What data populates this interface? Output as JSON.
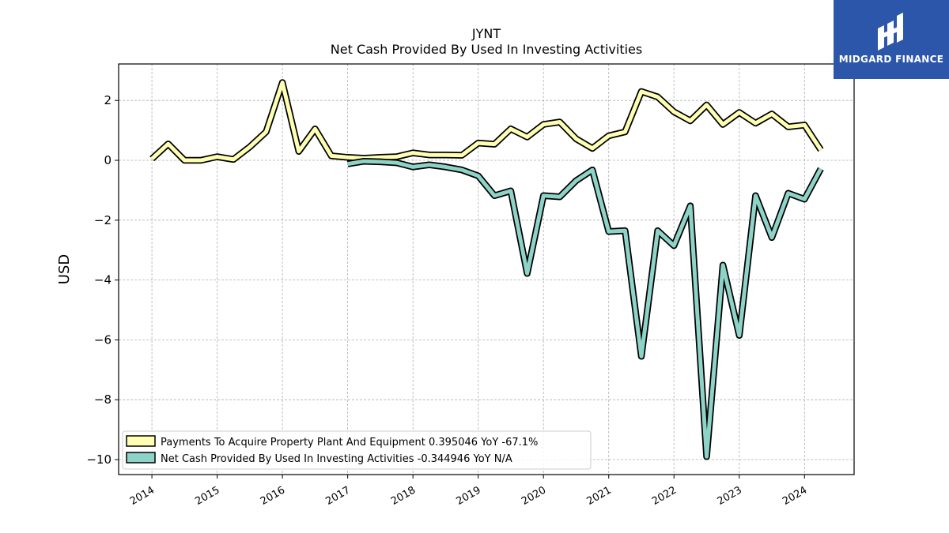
{
  "brand": {
    "name": "MIDGARD FINANCE",
    "color": "#2b56aa"
  },
  "chart_data": {
    "type": "line",
    "title": "JYNT",
    "subtitle": "Net Cash Provided By Used In Investing Activities",
    "xlabel": "",
    "ylabel": "USD",
    "xlim": [
      2013.49,
      2024.76
    ],
    "ylim": [
      -10.5,
      3.22
    ],
    "grid": true,
    "legend_position": "lower-left",
    "x_ticks": [
      2014,
      2015,
      2016,
      2017,
      2018,
      2019,
      2020,
      2021,
      2022,
      2023,
      2024
    ],
    "x_tick_labels": [
      "2014",
      "2015",
      "2016",
      "2017",
      "2018",
      "2019",
      "2020",
      "2021",
      "2022",
      "2023",
      "2024"
    ],
    "y_ticks": [
      2,
      0,
      -2,
      -4,
      -6,
      -8,
      -10
    ],
    "y_tick_labels": [
      "2",
      "0",
      "−2",
      "−4",
      "−6",
      "−8",
      "−10"
    ],
    "series": [
      {
        "name": "Payments To Acquire Property Plant And Equipment",
        "legend_label": "Payments To Acquire Property Plant And Equipment  0.395046 YoY -67.1%",
        "color": "#ffffb3",
        "x": [
          2014.0,
          2014.25,
          2014.5,
          2014.75,
          2015.0,
          2015.25,
          2015.5,
          2015.75,
          2016.0,
          2016.25,
          2016.5,
          2016.75,
          2017.0,
          2017.25,
          2017.5,
          2017.75,
          2018.0,
          2018.25,
          2018.5,
          2018.75,
          2019.0,
          2019.25,
          2019.5,
          2019.75,
          2020.0,
          2020.25,
          2020.5,
          2020.75,
          2021.0,
          2021.25,
          2021.5,
          2021.75,
          2022.0,
          2022.25,
          2022.5,
          2022.75,
          2023.0,
          2023.25,
          2023.5,
          2023.75,
          2024.0,
          2024.25
        ],
        "values": [
          0.05,
          0.55,
          0.0,
          0.0,
          0.12,
          0.03,
          0.45,
          0.95,
          2.6,
          0.3,
          1.05,
          0.15,
          0.1,
          0.07,
          0.1,
          0.12,
          0.25,
          0.18,
          0.18,
          0.17,
          0.58,
          0.54,
          1.05,
          0.78,
          1.2,
          1.28,
          0.72,
          0.4,
          0.82,
          0.95,
          2.3,
          2.12,
          1.62,
          1.32,
          1.85,
          1.2,
          1.6,
          1.24,
          1.55,
          1.12,
          1.18,
          0.35
        ]
      },
      {
        "name": "Net Cash Provided By Used In Investing Activities",
        "legend_label": "Net Cash Provided By Used In Investing Activities  -0.344946 YoY N/A",
        "color": "#8dd3c7",
        "x": [
          2017.0,
          2017.25,
          2017.5,
          2017.75,
          2018.0,
          2018.25,
          2018.5,
          2018.75,
          2019.0,
          2019.25,
          2019.5,
          2019.75,
          2020.0,
          2020.25,
          2020.5,
          2020.75,
          2021.0,
          2021.25,
          2021.5,
          2021.75,
          2022.0,
          2022.25,
          2022.5,
          2022.75,
          2023.0,
          2023.25,
          2023.5,
          2023.75,
          2024.0,
          2024.25
        ],
        "values": [
          -0.12,
          -0.03,
          -0.05,
          -0.08,
          -0.22,
          -0.15,
          -0.22,
          -0.32,
          -0.52,
          -1.18,
          -1.02,
          -3.78,
          -1.18,
          -1.22,
          -0.68,
          -0.32,
          -2.38,
          -2.35,
          -6.55,
          -2.35,
          -2.85,
          -1.52,
          -9.9,
          -3.5,
          -5.85,
          -1.18,
          -2.58,
          -1.1,
          -1.3,
          -0.28
        ]
      }
    ]
  }
}
